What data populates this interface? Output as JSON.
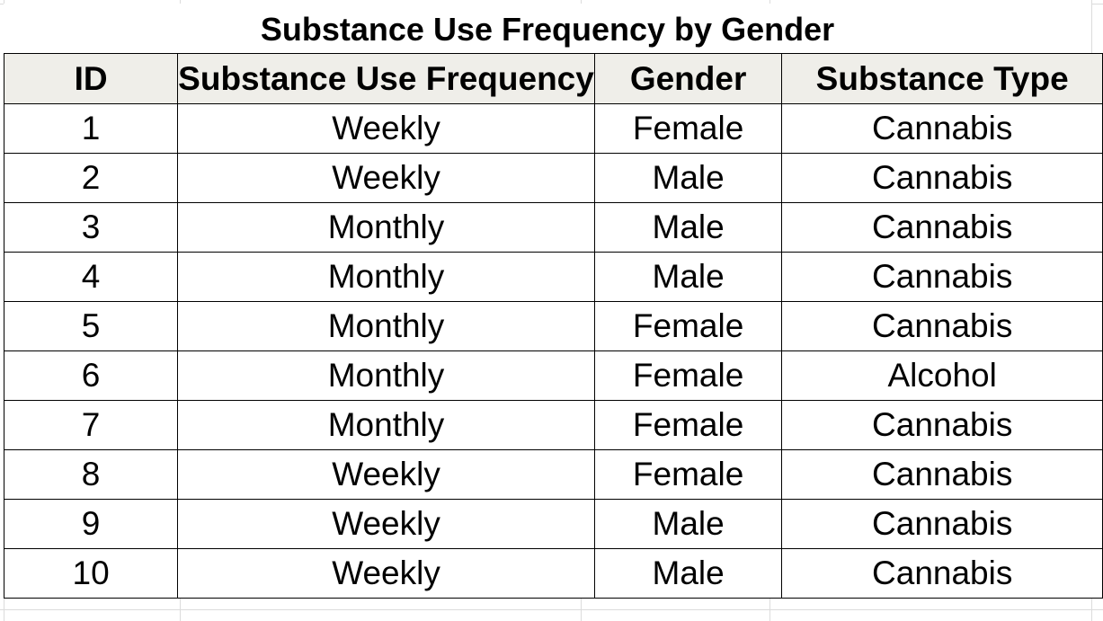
{
  "title": "Substance Use Frequency by Gender",
  "table": {
    "headers": [
      "ID",
      "Substance Use Frequency",
      "Gender",
      "Substance Type"
    ],
    "rows": [
      [
        "1",
        "Weekly",
        "Female",
        "Cannabis"
      ],
      [
        "2",
        "Weekly",
        "Male",
        "Cannabis"
      ],
      [
        "3",
        "Monthly",
        "Male",
        "Cannabis"
      ],
      [
        "4",
        "Monthly",
        "Male",
        "Cannabis"
      ],
      [
        "5",
        "Monthly",
        "Female",
        "Cannabis"
      ],
      [
        "6",
        "Monthly",
        "Female",
        "Alcohol"
      ],
      [
        "7",
        "Monthly",
        "Female",
        "Cannabis"
      ],
      [
        "8",
        "Weekly",
        "Female",
        "Cannabis"
      ],
      [
        "9",
        "Weekly",
        "Male",
        "Cannabis"
      ],
      [
        "10",
        "Weekly",
        "Male",
        "Cannabis"
      ]
    ]
  },
  "colors": {
    "header_fill": "#efeee9",
    "border": "#000000",
    "gridline": "#dcdcdc"
  }
}
